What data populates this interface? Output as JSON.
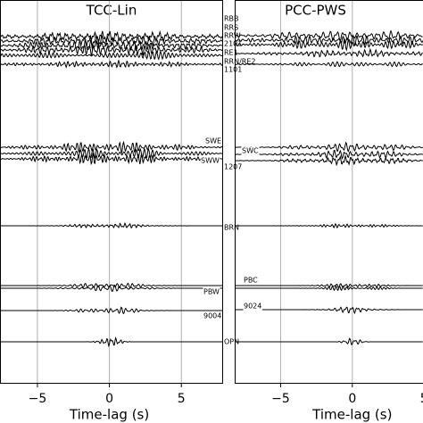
{
  "chart_data": [
    {
      "type": "line",
      "title": "TCC-Lin",
      "xlabel": "Time-lag (s)",
      "xlim": [
        -7.6,
        7.9
      ],
      "xticks": [
        {
          "value": -5,
          "label": "−5"
        },
        0,
        5
      ],
      "grid": true,
      "traces": [
        {
          "name": "RBB"
        },
        {
          "name": "RRS"
        },
        {
          "name": "RRW"
        },
        {
          "name": "2101"
        },
        {
          "name": "RE1"
        },
        {
          "name": "RRN/RE2"
        },
        {
          "name": "1101"
        },
        {
          "name": "SWE"
        },
        {
          "name": "SWW"
        },
        {
          "name": "1207"
        },
        {
          "name": "BRN"
        },
        {
          "name": "PBW"
        },
        {
          "name": "9004"
        },
        {
          "name": "OPN"
        }
      ]
    },
    {
      "type": "line",
      "title": "PCC-PWS",
      "xlabel": "Time-lag (s)",
      "xlim": [
        -8.2,
        5.3
      ],
      "xticks": [
        {
          "value": -5,
          "label": "−5"
        },
        0,
        5
      ],
      "grid": true,
      "traces": [
        {
          "name": "SWC"
        },
        {
          "name": "PBC"
        },
        {
          "name": "9024"
        }
      ]
    }
  ]
}
